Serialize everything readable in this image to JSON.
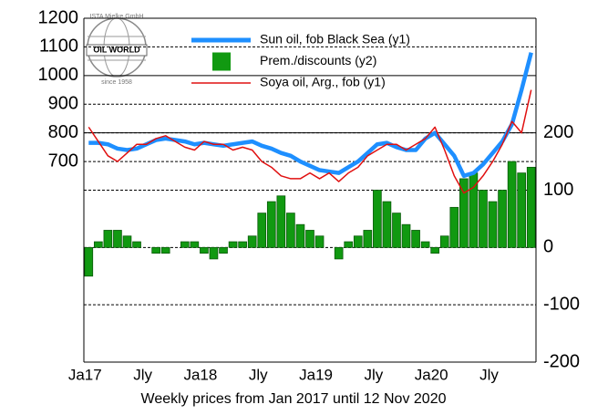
{
  "logo": {
    "name": "OIL WORLD",
    "top": "ISTA Mielke GmbH",
    "bottom": "since 1958"
  },
  "chart_data": {
    "type": "bar-line",
    "x_label": "Weekly prices from Jan 2017 until 12 Nov 2020",
    "categories": [
      "Ja17",
      null,
      null,
      null,
      null,
      null,
      "Jly",
      null,
      null,
      null,
      null,
      null,
      "Ja18",
      null,
      null,
      null,
      null,
      null,
      "Jly",
      null,
      null,
      null,
      null,
      null,
      "Ja19",
      null,
      null,
      null,
      null,
      null,
      "Jly",
      null,
      null,
      null,
      null,
      null,
      "Ja20",
      null,
      null,
      null,
      null,
      null,
      "Jly",
      null,
      null,
      null,
      null
    ],
    "ylim": [
      0,
      1200
    ],
    "yticks": [
      700,
      800,
      900,
      1000,
      1100,
      1200
    ],
    "y2lim": [
      -200,
      400
    ],
    "y2ticks": [
      -200,
      -100,
      0,
      100,
      200
    ],
    "grid": true,
    "legend": "top",
    "series": [
      {
        "name": "Sun oil, fob Black Sea (y1)",
        "color": "#1e8fff",
        "type": "line",
        "axis": "y",
        "values": [
          765,
          765,
          760,
          745,
          740,
          745,
          760,
          775,
          780,
          775,
          770,
          760,
          765,
          760,
          755,
          760,
          765,
          770,
          755,
          745,
          730,
          720,
          700,
          685,
          670,
          665,
          660,
          680,
          700,
          730,
          760,
          765,
          750,
          740,
          740,
          780,
          800,
          760,
          720,
          650,
          660,
          690,
          730,
          770,
          830,
          950,
          1080
        ]
      },
      {
        "name": "Prem./discounts (y2)",
        "color": "#119911",
        "type": "bar",
        "axis": "y2",
        "values": [
          -50,
          10,
          30,
          30,
          20,
          10,
          0,
          -10,
          -10,
          0,
          10,
          10,
          -10,
          -20,
          -10,
          10,
          10,
          20,
          60,
          80,
          90,
          60,
          40,
          30,
          20,
          0,
          -20,
          10,
          20,
          30,
          100,
          80,
          60,
          40,
          30,
          10,
          -10,
          20,
          70,
          120,
          130,
          100,
          80,
          100,
          150,
          130,
          140
        ]
      },
      {
        "name": "Soya oil, Arg., fob (y1)",
        "color": "#e01010",
        "type": "line",
        "axis": "y",
        "values": [
          820,
          770,
          720,
          700,
          730,
          760,
          760,
          780,
          790,
          770,
          750,
          740,
          770,
          760,
          760,
          740,
          750,
          740,
          700,
          680,
          650,
          640,
          640,
          660,
          640,
          660,
          630,
          660,
          680,
          720,
          740,
          760,
          760,
          740,
          760,
          780,
          820,
          740,
          650,
          590,
          610,
          650,
          700,
          760,
          840,
          800,
          950
        ]
      }
    ]
  }
}
